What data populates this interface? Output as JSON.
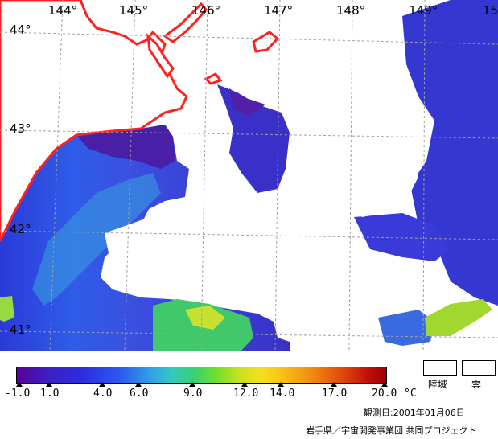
{
  "map": {
    "longitude_labels": [
      "144°",
      "145°",
      "146°",
      "147°",
      "148°",
      "149°",
      "15"
    ],
    "latitude_labels": [
      "44°",
      "43°",
      "42°",
      "41°"
    ]
  },
  "colorbar": {
    "ticks": [
      "-1.0",
      "1.0",
      "4.0",
      "6.0",
      "9.0",
      "12.0",
      "14.0",
      "17.0",
      "20.0"
    ],
    "unit": "°C"
  },
  "legend": {
    "land_label": "陸域",
    "cloud_label": "雲"
  },
  "observation_date": "観測日:2001年01月06日",
  "credit": "岩手県／宇宙開発事業団 共同プロジェクト",
  "colors": {
    "coastline": "#ff2020",
    "grid": "#a0a0a0"
  }
}
